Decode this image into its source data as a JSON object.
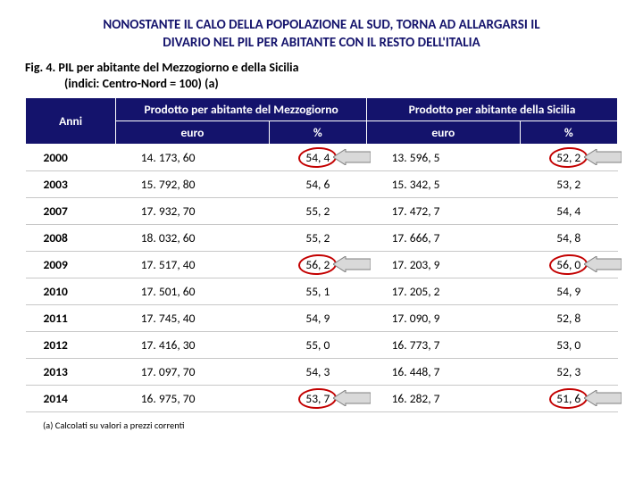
{
  "title_line1": "NONOSTANTE IL CALO DELLA POPOLAZIONE AL SUD, TORNA AD ALLARGARSI IL",
  "title_line2": "DIVARIO NEL PIL PER ABITANTE CON IL RESTO DELL'ITALIA",
  "caption_line1": "Fig. 4. PIL per abitante del Mezzogiorno e della Sicilia",
  "caption_line2": "(indici: Centro-Nord = 100) (a)",
  "header": {
    "anni": "Anni",
    "group1": "Prodotto per abitante del Mezzogiorno",
    "group2": "Prodotto per abitante della Sicilia",
    "euro": "euro",
    "pct": "%"
  },
  "footnote": "(a) Calcolati su valori a prezzi correnti",
  "rows": [
    {
      "year": "2000",
      "m_euro": "14. 173, 60",
      "m_pct": "54, 4",
      "s_euro": "13. 596, 5",
      "s_pct": "52, 2",
      "hl": true
    },
    {
      "year": "2003",
      "m_euro": "15. 792, 80",
      "m_pct": "54, 6",
      "s_euro": "15. 342, 5",
      "s_pct": "53, 2",
      "hl": false
    },
    {
      "year": "2007",
      "m_euro": "17. 932, 70",
      "m_pct": "55, 2",
      "s_euro": "17. 472, 7",
      "s_pct": "54, 4",
      "hl": false
    },
    {
      "year": "2008",
      "m_euro": "18. 032, 60",
      "m_pct": "55, 2",
      "s_euro": "17. 666, 7",
      "s_pct": "54, 8",
      "hl": false
    },
    {
      "year": "2009",
      "m_euro": "17. 517, 40",
      "m_pct": "56, 2",
      "s_euro": "17. 203, 9",
      "s_pct": "56, 0",
      "hl": true
    },
    {
      "year": "2010",
      "m_euro": "17. 501, 60",
      "m_pct": "55, 1",
      "s_euro": "17. 205, 2",
      "s_pct": "54, 9",
      "hl": false
    },
    {
      "year": "2011",
      "m_euro": "17. 745, 40",
      "m_pct": "54, 9",
      "s_euro": "17. 090, 9",
      "s_pct": "52, 8",
      "hl": false
    },
    {
      "year": "2012",
      "m_euro": "17. 416, 30",
      "m_pct": "55, 0",
      "s_euro": "16. 773, 7",
      "s_pct": "53, 0",
      "hl": false
    },
    {
      "year": "2013",
      "m_euro": "17. 097, 70",
      "m_pct": "54, 3",
      "s_euro": "16. 448, 7",
      "s_pct": "52, 3",
      "hl": false
    },
    {
      "year": "2014",
      "m_euro": "16. 975, 70",
      "m_pct": "53, 7",
      "s_euro": "16. 282, 7",
      "s_pct": "51, 6",
      "hl": true
    }
  ],
  "styles": {
    "header_bg": "#14136c",
    "header_fg": "#ffffff",
    "circle_color": "#c30000",
    "arrow_fill": "#d9d9d9",
    "arrow_stroke": "#7f7f7f",
    "grid_color": "#c7c7c7"
  }
}
